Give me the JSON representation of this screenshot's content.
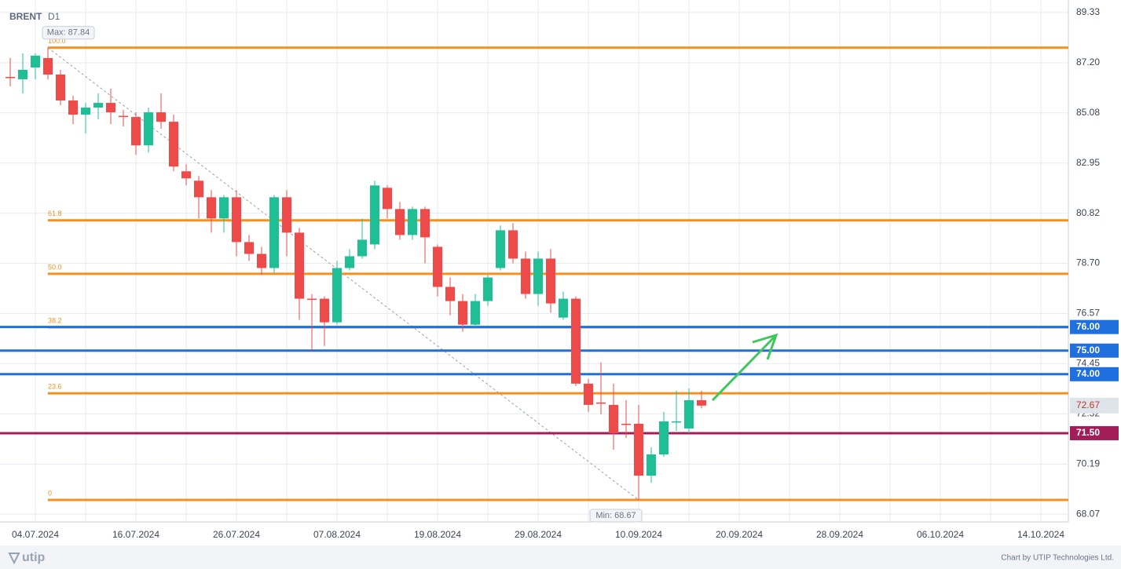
{
  "chart_data": {
    "type": "candlestick",
    "title": "BRENT",
    "subtitle": "D1",
    "footer_logo": "utip",
    "credit": "Chart by UTIP Technologies Ltd.",
    "up_color": "#1fbf95",
    "down_color": "#ee4a4a",
    "grid": true,
    "ylim": [
      67.74,
      89.86
    ],
    "yticks": [
      89.33,
      {
        "value": 87.2,
        "label": "87.20"
      },
      85.08,
      82.95,
      80.82,
      {
        "value": 78.7,
        "label": "78.70"
      },
      76.57,
      74.45,
      72.32,
      70.19,
      68.07
    ],
    "categories": [
      null,
      null,
      "04.07.2024",
      null,
      null,
      null,
      null,
      null,
      null,
      null,
      "16.07.2024",
      null,
      null,
      null,
      null,
      null,
      null,
      null,
      "26.07.2024",
      null,
      null,
      null,
      null,
      null,
      null,
      null,
      "07.08.2024",
      null,
      null,
      null,
      null,
      null,
      null,
      null,
      "19.08.2024",
      null,
      null,
      null,
      null,
      null,
      null,
      null,
      "29.08.2024",
      null,
      null,
      null,
      null,
      null,
      null,
      null,
      "10.09.2024",
      null,
      null,
      null,
      null,
      null,
      null,
      null,
      "20.09.2024",
      null,
      null,
      null,
      null,
      null,
      null,
      null,
      "28.09.2024",
      null,
      null,
      null,
      null,
      null,
      null,
      null,
      "06.10.2024",
      null,
      null,
      null,
      null,
      null,
      null,
      null,
      "14.10.2024"
    ],
    "open": [
      86.6,
      86.5,
      87.0,
      87.4,
      86.7,
      85.6,
      85.0,
      85.3,
      85.5,
      84.95,
      84.9,
      83.7,
      85.1,
      84.7,
      82.6,
      82.2,
      81.5,
      80.6,
      81.5,
      79.6,
      79.1,
      78.5,
      81.5,
      80.0,
      77.2,
      77.2,
      76.2,
      78.5,
      79.0,
      79.5,
      81.9,
      81.0,
      79.9,
      81.0,
      79.4,
      77.7,
      77.1,
      76.1,
      77.1,
      78.5,
      80.1,
      78.9,
      77.4,
      78.9,
      76.4,
      77.2,
      73.6,
      72.8,
      72.7,
      71.9,
      71.9,
      69.7,
      70.6,
      72.0,
      71.7,
      72.9,
      null,
      null,
      null,
      null,
      null,
      null,
      null,
      null,
      null,
      null,
      null,
      null,
      null,
      null,
      null,
      null,
      null,
      null,
      null,
      null,
      null,
      null,
      null,
      null,
      null,
      null,
      null
    ],
    "high": [
      87.4,
      87.6,
      87.6,
      87.84,
      86.9,
      85.8,
      85.5,
      85.9,
      86.1,
      85.2,
      85.1,
      85.3,
      85.9,
      85.0,
      82.9,
      82.4,
      81.8,
      81.6,
      81.8,
      79.9,
      79.4,
      81.6,
      81.8,
      80.2,
      77.4,
      77.3,
      78.8,
      79.3,
      80.6,
      82.2,
      82.0,
      81.3,
      81.1,
      81.1,
      79.5,
      78.1,
      77.4,
      77.4,
      78.2,
      80.3,
      80.4,
      79.2,
      79.2,
      79.3,
      77.5,
      77.3,
      73.8,
      74.5,
      73.6,
      72.9,
      72.7,
      70.9,
      72.4,
      73.3,
      73.4,
      73.3,
      null,
      null,
      null,
      null,
      null,
      null,
      null,
      null,
      null,
      null,
      null,
      null,
      null,
      null,
      null,
      null,
      null,
      null,
      null,
      null,
      null,
      null,
      null,
      null,
      null,
      null,
      null
    ],
    "low": [
      86.2,
      85.9,
      86.5,
      86.5,
      85.4,
      84.6,
      84.2,
      84.8,
      84.6,
      84.5,
      83.3,
      83.4,
      84.4,
      82.6,
      82.0,
      80.6,
      80.0,
      80.0,
      79.0,
      78.8,
      78.2,
      78.3,
      79.0,
      76.3,
      75.0,
      75.2,
      76.1,
      78.4,
      78.9,
      79.3,
      80.6,
      79.7,
      79.7,
      78.7,
      77.3,
      76.5,
      75.8,
      76.0,
      76.9,
      78.4,
      78.7,
      77.2,
      76.9,
      76.6,
      76.3,
      73.5,
      72.4,
      72.3,
      70.8,
      71.3,
      68.67,
      69.4,
      70.5,
      71.6,
      71.5,
      72.55,
      null,
      null,
      null,
      null,
      null,
      null,
      null,
      null,
      null,
      null,
      null,
      null,
      null,
      null,
      null,
      null,
      null,
      null,
      null,
      null,
      null,
      null,
      null,
      null,
      null,
      null,
      null
    ],
    "close": [
      86.55,
      86.9,
      87.5,
      86.7,
      85.6,
      85.0,
      85.3,
      85.5,
      85.1,
      84.9,
      83.7,
      85.1,
      84.7,
      82.8,
      82.3,
      81.5,
      80.6,
      81.5,
      79.6,
      79.1,
      78.5,
      81.5,
      80.0,
      77.2,
      77.15,
      76.2,
      78.5,
      79.0,
      79.7,
      82.0,
      81.0,
      79.9,
      81.0,
      79.8,
      77.7,
      77.1,
      76.1,
      77.1,
      78.1,
      80.1,
      78.9,
      77.4,
      78.9,
      77.0,
      77.2,
      73.6,
      72.7,
      72.75,
      71.5,
      71.85,
      69.7,
      70.6,
      72.0,
      72.0,
      72.9,
      72.67,
      null,
      null,
      null,
      null,
      null,
      null,
      null,
      null,
      null,
      null,
      null,
      null,
      null,
      null,
      null,
      null,
      null,
      null,
      null,
      null,
      null,
      null,
      null,
      null,
      null,
      null,
      null
    ],
    "max_label": "Max: 87.84",
    "min_label": "Min: 68.67",
    "fib_color": "#f5901e",
    "fib_levels": [
      {
        "label": "100.0",
        "value": 87.84
      },
      {
        "label": "61.8",
        "value": 80.52
      },
      {
        "label": "50.0",
        "value": 78.255
      },
      {
        "label": "38.2",
        "value": 75.99
      },
      {
        "label": "23.6",
        "value": 73.19
      },
      {
        "label": "0",
        "value": 68.67
      }
    ],
    "levels": [
      {
        "value": 76.0,
        "label": "76.00",
        "color": "#1f6fde"
      },
      {
        "value": 75.0,
        "label": "75.00",
        "color": "#1f6fde"
      },
      {
        "value": 74.0,
        "label": "74.00",
        "color": "#1f6fde"
      },
      {
        "value": 71.5,
        "label": "71.50",
        "color": "#a31d58"
      }
    ],
    "last_price": 72.67
  }
}
